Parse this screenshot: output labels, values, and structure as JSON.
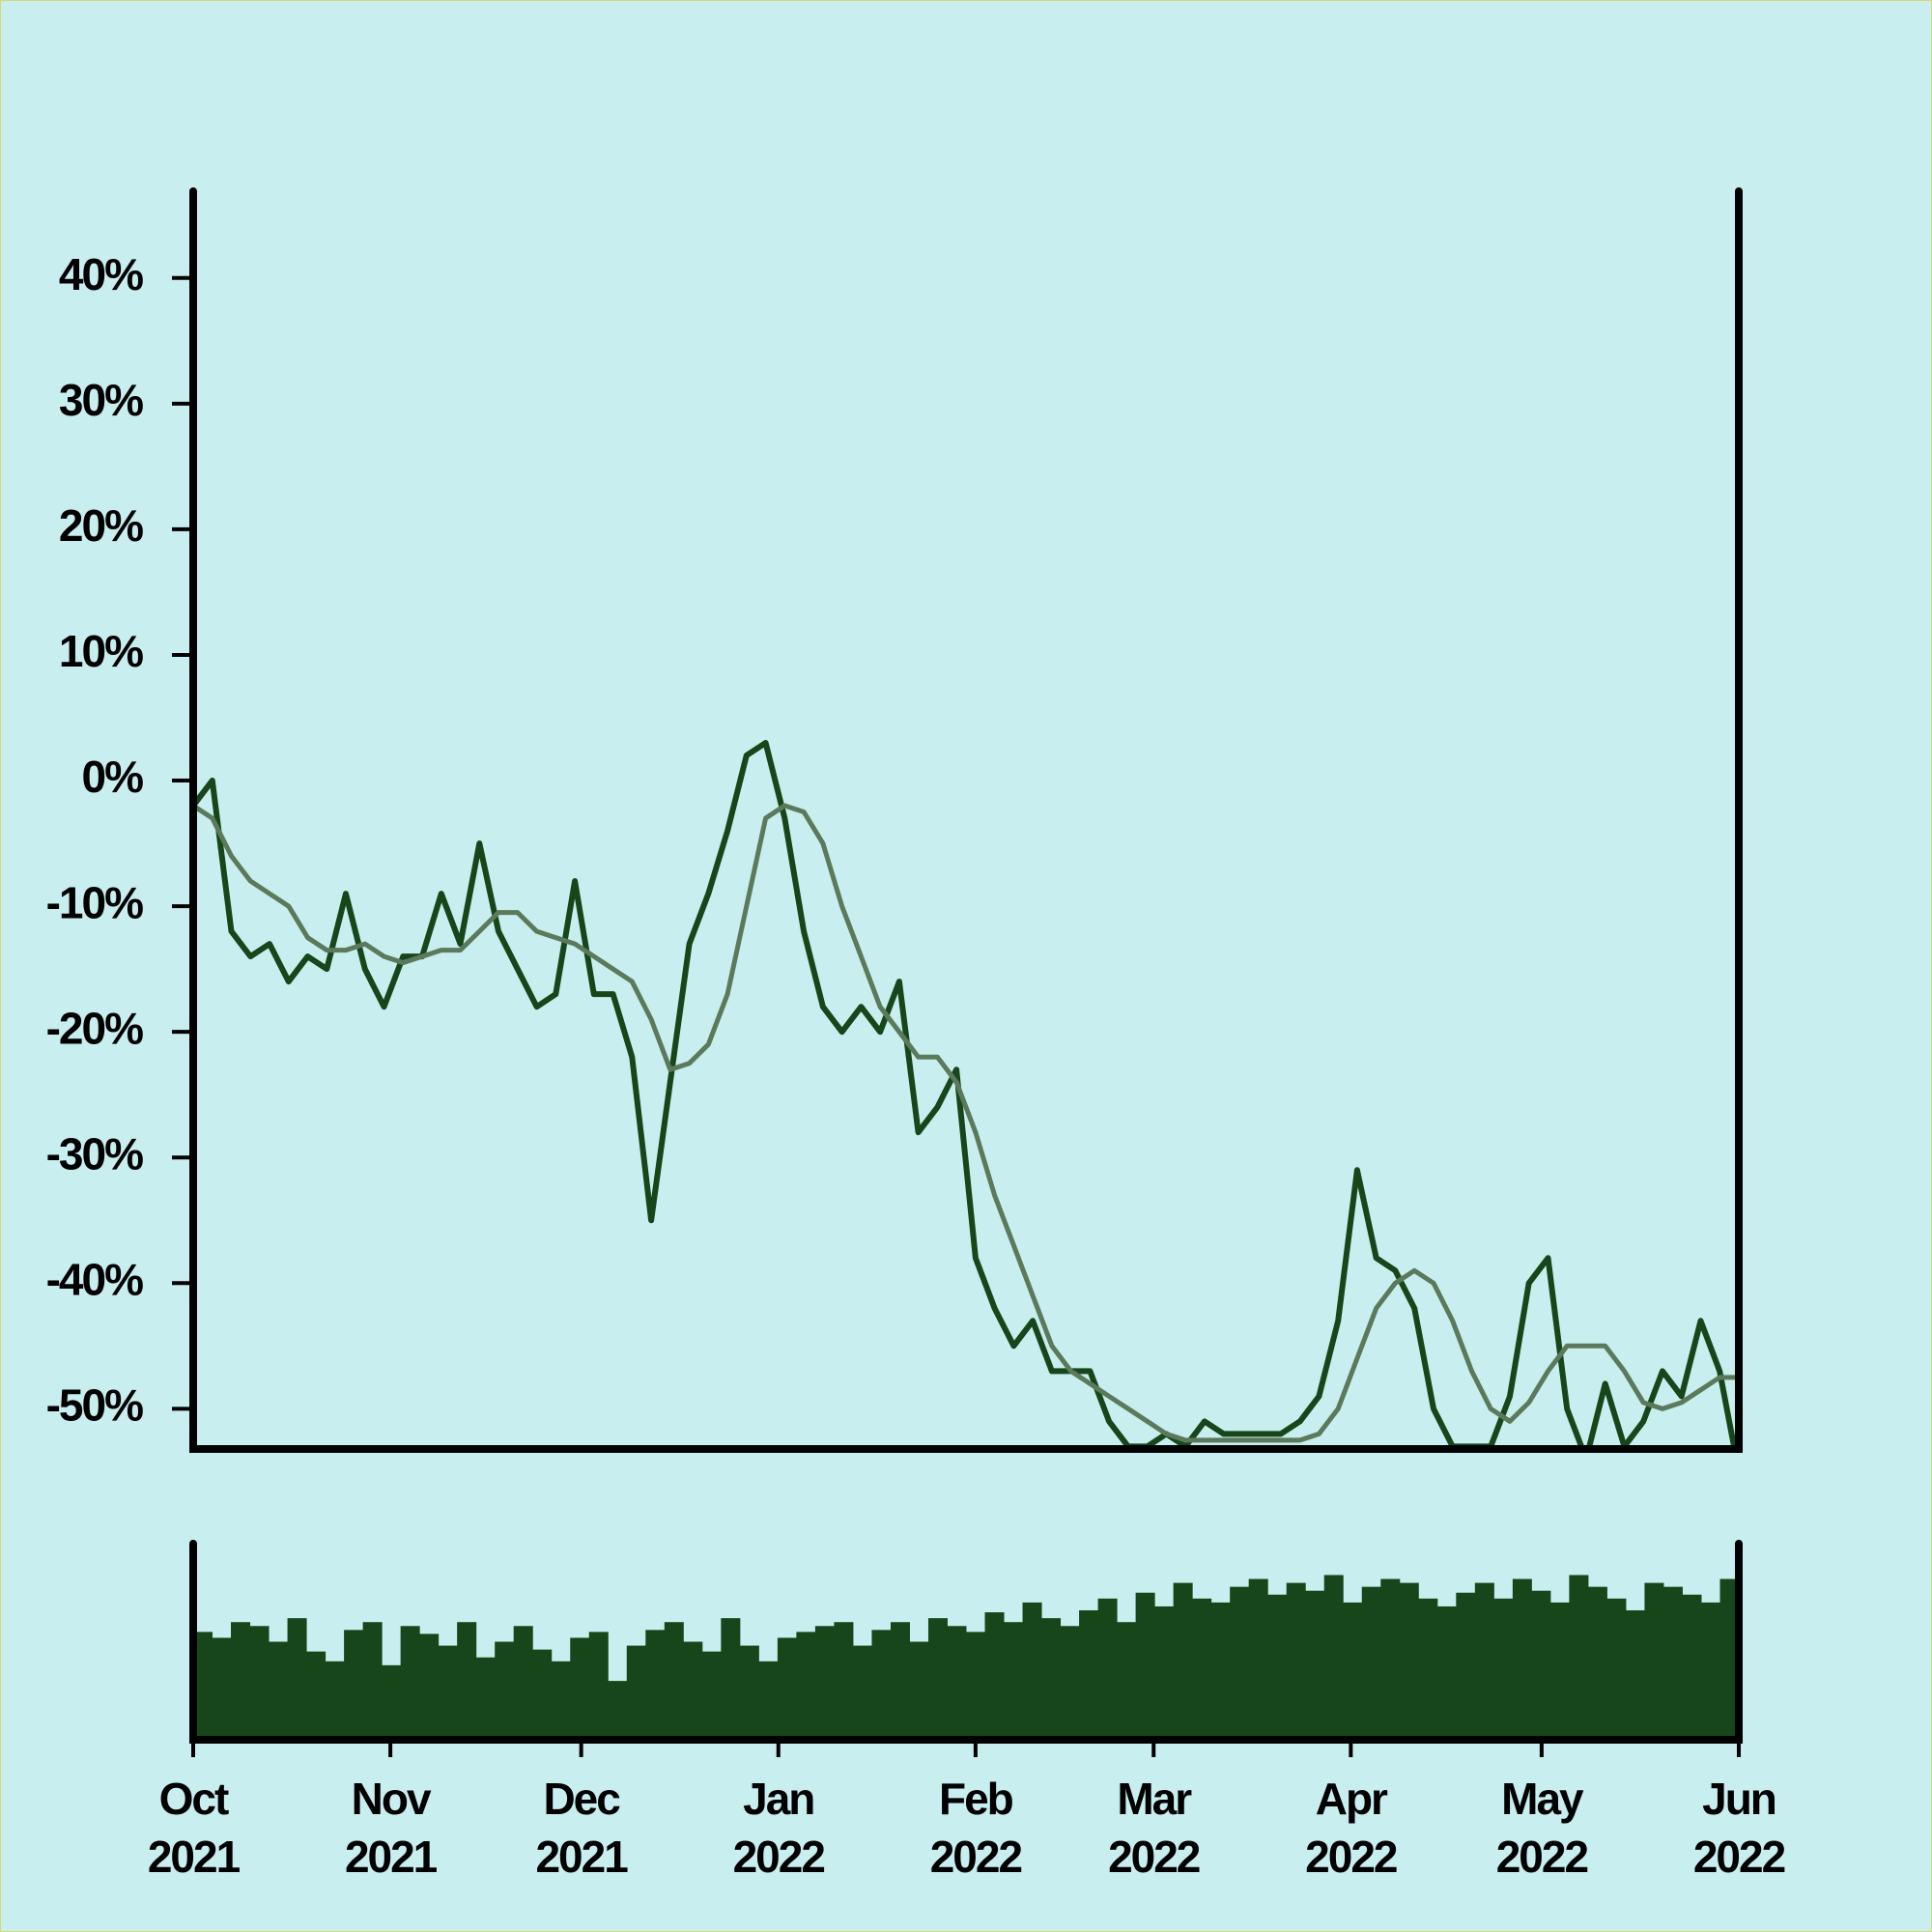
{
  "chart_data": [
    {
      "type": "line",
      "xlim": [
        "2021-10",
        "2022-06"
      ],
      "ylim": [
        -53.2,
        46.9
      ],
      "yticks": [
        {
          "value": -50,
          "label": "-50%"
        },
        {
          "value": -40,
          "label": "-40%"
        },
        {
          "value": -30,
          "label": "-30%"
        },
        {
          "value": -20,
          "label": "-20%"
        },
        {
          "value": -10,
          "label": "-10%"
        },
        {
          "value": 0,
          "label": "0%"
        },
        {
          "value": 10,
          "label": "10%"
        },
        {
          "value": 20,
          "label": "20%"
        },
        {
          "value": 30,
          "label": "30%"
        },
        {
          "value": 40,
          "label": "40%"
        }
      ],
      "series": [
        {
          "color": "#17461a",
          "values": [
            -2,
            0,
            -12,
            -14,
            -13,
            -16,
            -14,
            -15,
            -9,
            -15,
            -18,
            -14,
            -14,
            -9,
            -13,
            -5,
            -12,
            -15,
            -18,
            -17,
            -8,
            -17,
            -17,
            -22,
            -35,
            -24,
            -13,
            -9,
            -4,
            2,
            3,
            -3,
            -12,
            -18,
            -20,
            -18,
            -20,
            -16,
            -28,
            -26,
            -23,
            -38,
            -42,
            -45,
            -43,
            -47,
            -47,
            -47,
            -51,
            -53,
            -53,
            -52,
            -53,
            -51,
            -52,
            -52,
            -52,
            -52,
            -51,
            -49,
            -43,
            -31,
            -38,
            -39,
            -42,
            -50,
            -53,
            -53,
            -53,
            -49,
            -40,
            -38,
            -50,
            -54,
            -48,
            -53,
            -51,
            -47,
            -49,
            -43,
            -47,
            -55
          ]
        },
        {
          "color": "#5b7a5b",
          "values": [
            -2,
            -3,
            -6,
            -8,
            -9,
            -10,
            -12.5,
            -13.5,
            -13.5,
            -13,
            -14,
            -14.5,
            -14,
            -13.5,
            -13.5,
            -12,
            -10.5,
            -10.5,
            -12,
            -12.5,
            -13,
            -14,
            -15,
            -16,
            -19,
            -23,
            -22.5,
            -21,
            -17,
            -10,
            -3,
            -2,
            -2.5,
            -5,
            -10,
            -14,
            -18,
            -20,
            -22,
            -22,
            -24,
            -28,
            -33,
            -37,
            -41,
            -45,
            -47,
            -48,
            -49,
            -50,
            -51,
            -52,
            -52.5,
            -52.5,
            -52.5,
            -52.5,
            -52.5,
            -52.5,
            -52.5,
            -52,
            -50,
            -46,
            -42,
            -40,
            -39,
            -40,
            -43,
            -47,
            -50,
            -51,
            -49.5,
            -47,
            -45,
            -45,
            -45,
            -47,
            -49.5,
            -50,
            -49.5,
            -48.5,
            -47.5,
            -47.5
          ]
        }
      ]
    },
    {
      "type": "bar",
      "color": "#17461a",
      "ylim": [
        0,
        100
      ],
      "values": [
        55,
        52,
        60,
        58,
        50,
        62,
        45,
        40,
        56,
        60,
        38,
        58,
        54,
        48,
        60,
        42,
        50,
        58,
        46,
        40,
        52,
        55,
        30,
        48,
        56,
        60,
        50,
        45,
        62,
        48,
        40,
        52,
        55,
        58,
        60,
        48,
        56,
        60,
        50,
        62,
        58,
        55,
        65,
        60,
        70,
        62,
        58,
        66,
        72,
        60,
        75,
        68,
        80,
        72,
        70,
        78,
        82,
        74,
        80,
        76,
        84,
        70,
        78,
        82,
        80,
        72,
        68,
        75,
        80,
        72,
        82,
        76,
        70,
        84,
        78,
        72,
        66,
        80,
        78,
        74,
        70,
        82
      ],
      "xticks": [
        {
          "value": "2021-10",
          "label": "Oct 2021"
        },
        {
          "value": "2021-11",
          "label": "Nov 2021"
        },
        {
          "value": "2021-12",
          "label": "Dec 2021"
        },
        {
          "value": "2022-01",
          "label": "Jan 2022"
        },
        {
          "value": "2022-02",
          "label": "Feb 2022"
        },
        {
          "value": "2022-03",
          "label": "Mar 2022"
        },
        {
          "value": "2022-04",
          "label": "Apr 2022"
        },
        {
          "value": "2022-05",
          "label": "May 2022"
        },
        {
          "value": "2022-06",
          "label": "Jun 2022"
        }
      ]
    }
  ]
}
